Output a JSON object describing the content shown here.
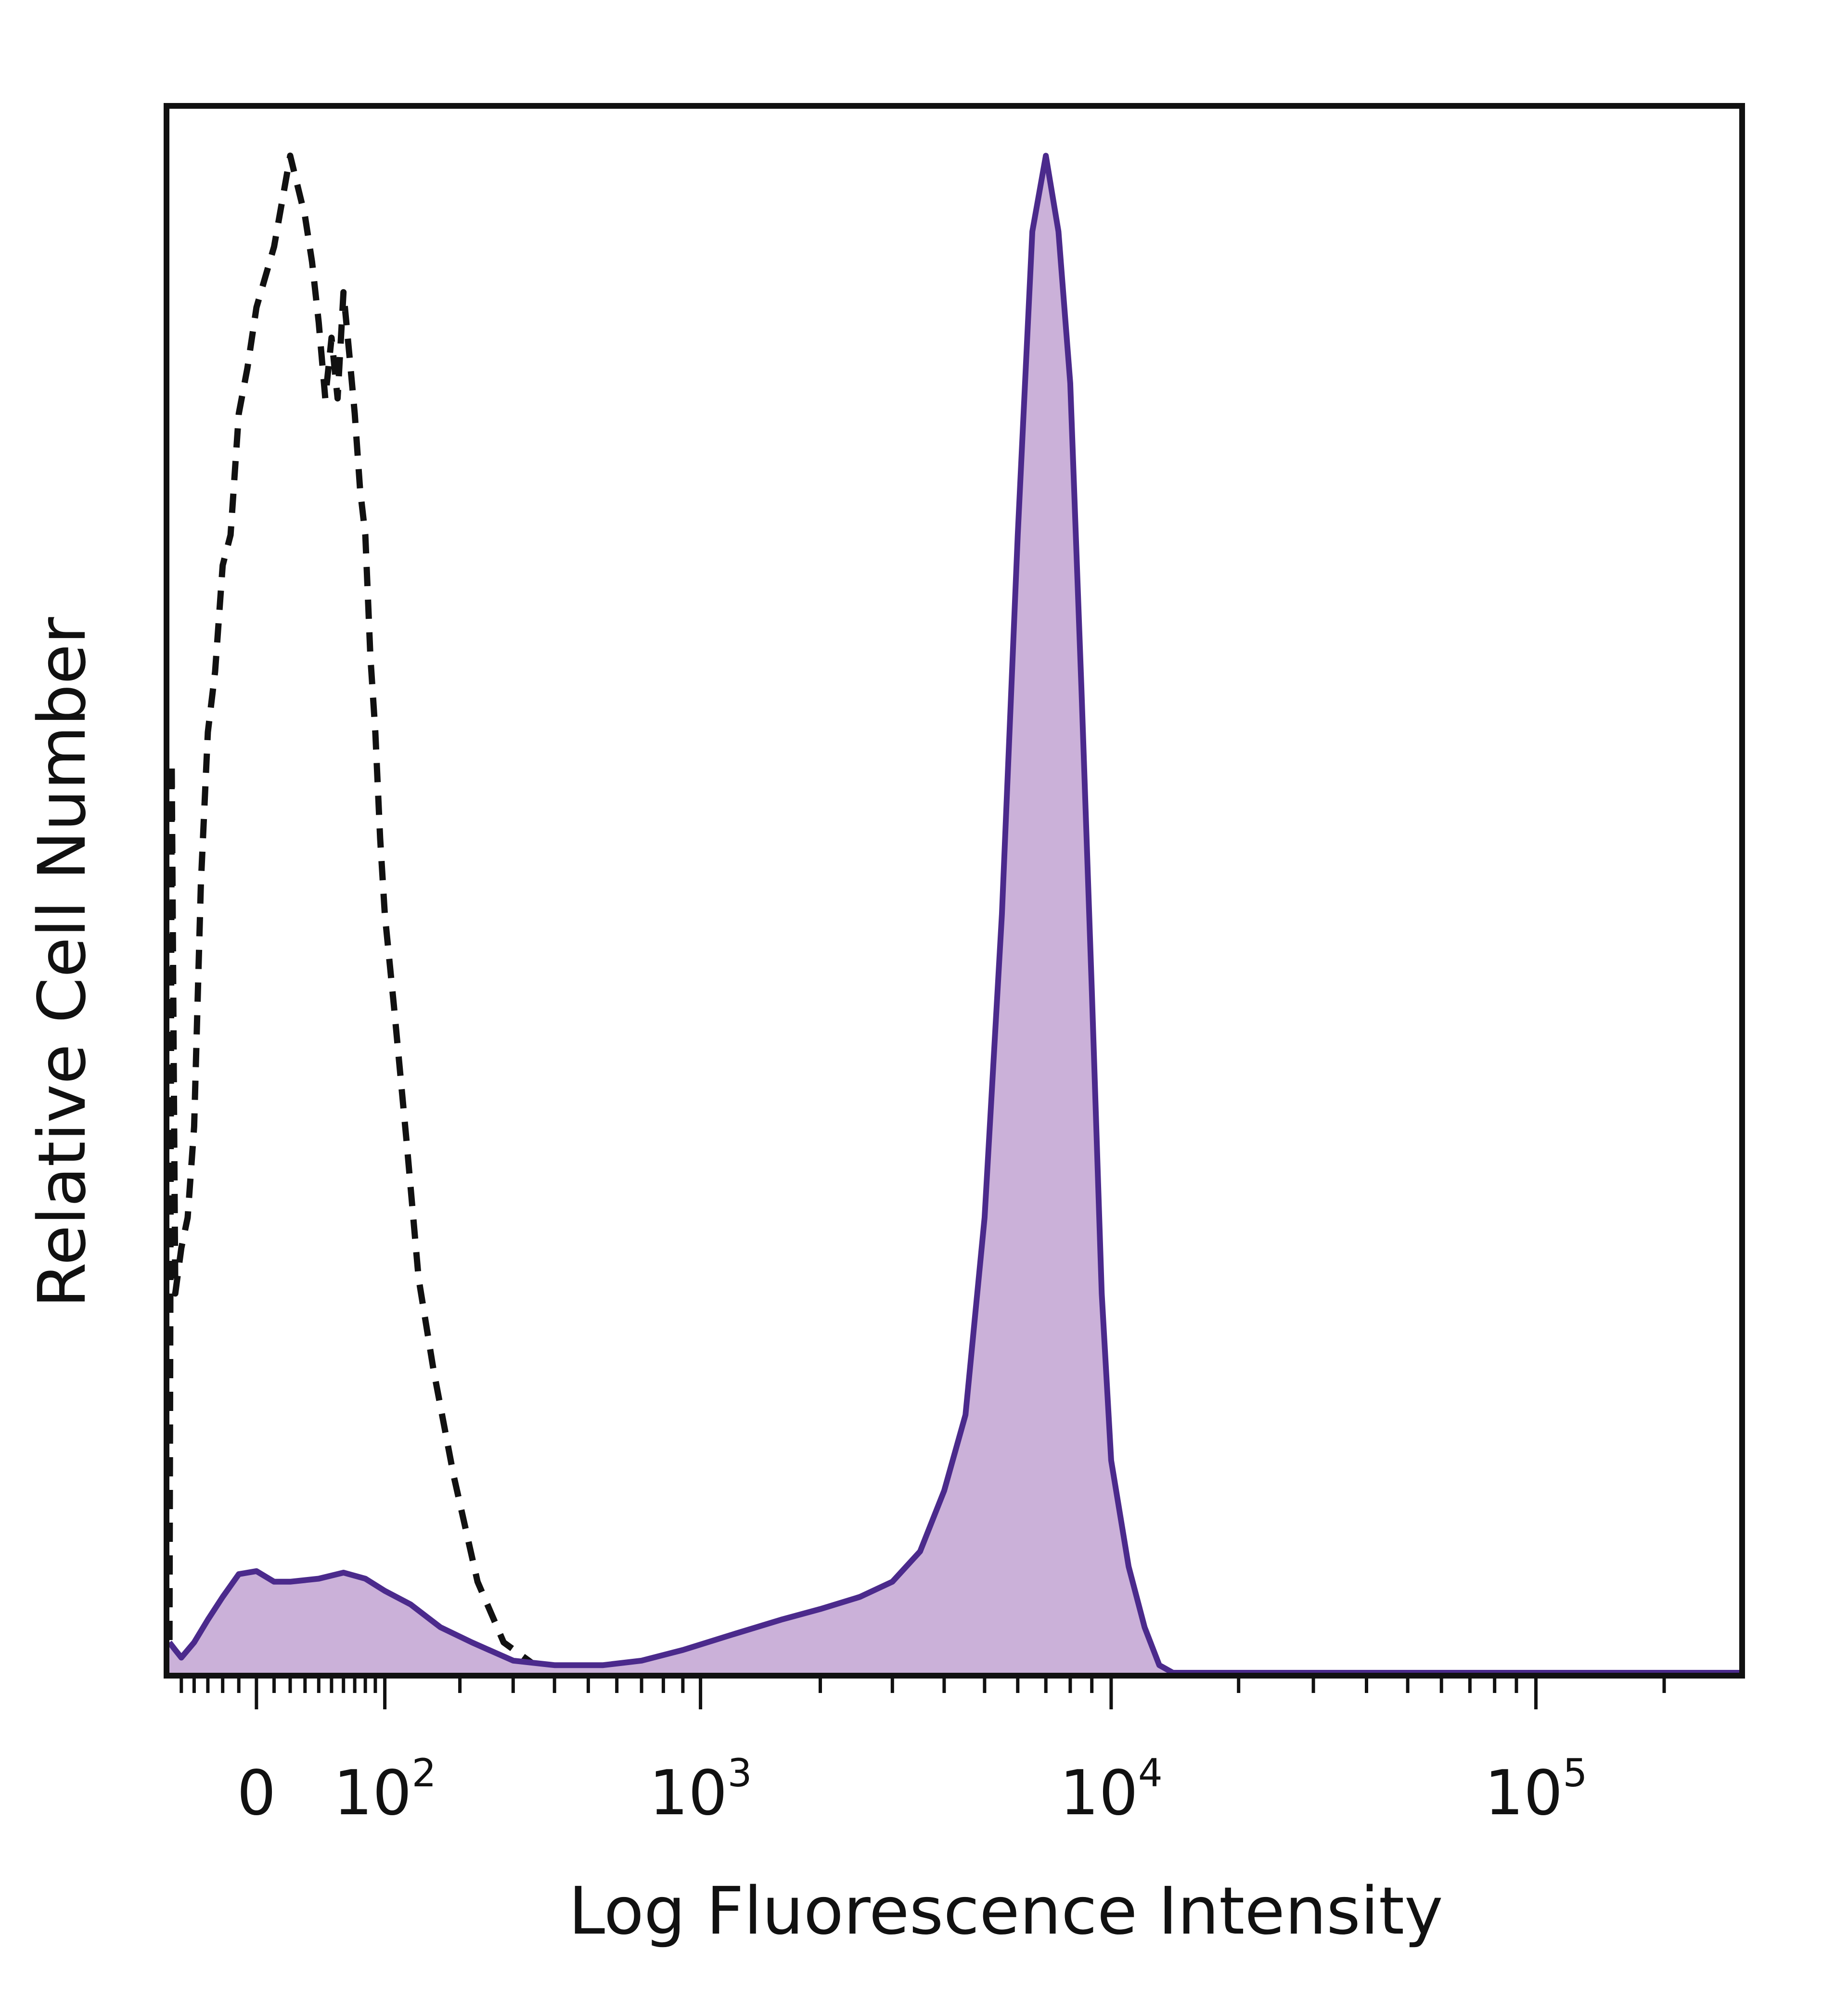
{
  "chart_data": {
    "type": "area",
    "title": "",
    "xlabel": "Log Fluorescence Intensity",
    "ylabel": "Relative Cell Number",
    "x_scale": "biexponential",
    "xlim": [
      -60,
      300000
    ],
    "ylim": [
      0,
      100
    ],
    "grid": false,
    "legend": "none",
    "x_tick_labels": [
      {
        "base": "0",
        "exp": "",
        "value": 0
      },
      {
        "base": "10",
        "exp": "2",
        "value": 100
      },
      {
        "base": "10",
        "exp": "3",
        "value": 1000
      },
      {
        "base": "10",
        "exp": "4",
        "value": 10000
      },
      {
        "base": "10",
        "exp": "5",
        "value": 100000
      }
    ],
    "series": [
      {
        "style": "dashed-outline",
        "color": "#111111",
        "x": [
          -60,
          -58,
          -55,
          -50,
          -45,
          -40,
          -35,
          -30,
          -25,
          -20,
          -15,
          -10,
          -5,
          0,
          10,
          20,
          30,
          35,
          40,
          45,
          50,
          55,
          60,
          65,
          70,
          75,
          80,
          85,
          90,
          95,
          100,
          110,
          125,
          140,
          160,
          190,
          230,
          280,
          350,
          450,
          600
        ],
        "y": [
          0,
          60,
          25,
          28,
          30,
          36,
          52,
          62,
          66,
          73,
          75,
          83,
          86,
          90,
          94,
          100,
          96,
          93,
          89,
          84,
          88,
          84,
          91,
          87,
          83,
          78,
          75,
          67,
          62,
          55,
          50,
          44,
          35,
          26,
          20,
          13,
          6,
          2,
          0.5,
          0,
          0
        ]
      },
      {
        "style": "filled",
        "color": "#4b2a8c",
        "fill": "#cbb1d9",
        "x": [
          -60,
          -55,
          -50,
          -40,
          -30,
          -20,
          -10,
          0,
          10,
          20,
          40,
          60,
          80,
          100,
          130,
          170,
          220,
          300,
          400,
          550,
          700,
          900,
          1200,
          1600,
          2000,
          2500,
          3000,
          3500,
          4000,
          4500,
          5000,
          5500,
          6000,
          6500,
          7000,
          7500,
          8000,
          8500,
          9000,
          9500,
          10000,
          11000,
          12000,
          13000,
          14000,
          15000,
          16000,
          18000,
          20000,
          30000,
          50000,
          100000,
          200000,
          300000
        ],
        "y": [
          2,
          1.5,
          1,
          2,
          3.5,
          5,
          6.5,
          6.7,
          6,
          6,
          6.2,
          6.6,
          6.2,
          5.4,
          4.5,
          3,
          2,
          0.8,
          0.5,
          0.5,
          0.8,
          1.5,
          2.5,
          3.5,
          4.2,
          5,
          6,
          8,
          12,
          17,
          30,
          50,
          75,
          95,
          100,
          95,
          85,
          65,
          45,
          25,
          14,
          7,
          3,
          0.5,
          0,
          0,
          0,
          0,
          0,
          0,
          0,
          0,
          0,
          0
        ]
      }
    ]
  }
}
